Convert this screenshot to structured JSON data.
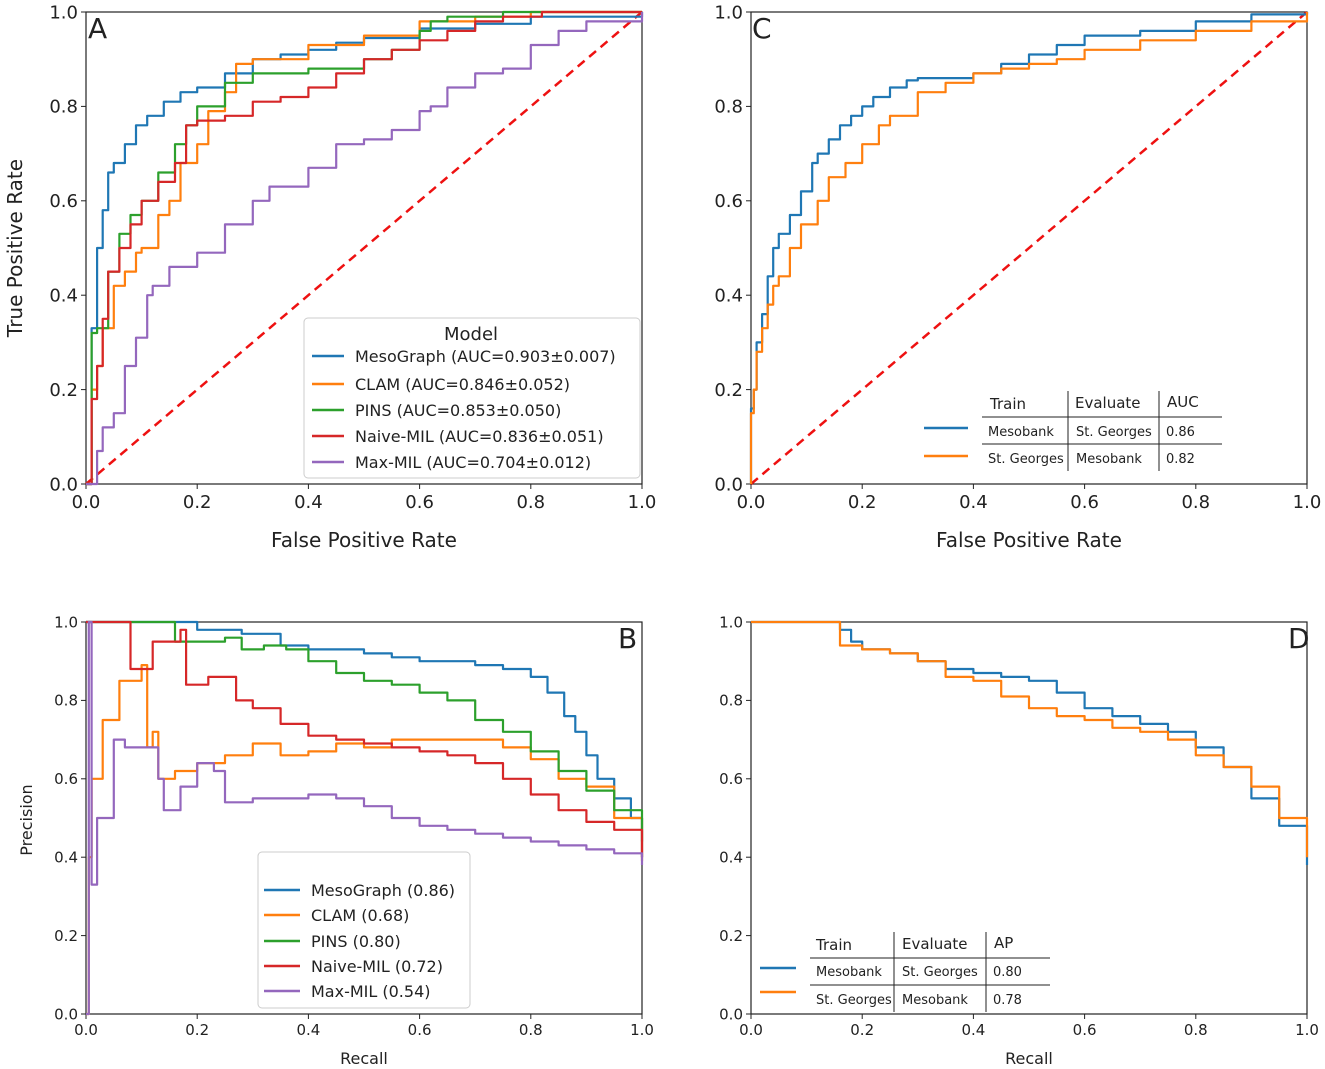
{
  "colors": {
    "MesoGraph": "#1f77b4",
    "CLAM": "#ff7f0e",
    "PINS": "#2ca02c",
    "Naive-MIL": "#d62728",
    "Max-MIL": "#9467bd",
    "diagonal": "#ee1111"
  },
  "chart_data": [
    {
      "panel_label": "A",
      "type": "line",
      "xlabel": "False Positive Rate",
      "ylabel": "True Positive Rate",
      "xlim": [
        0,
        1
      ],
      "ylim": [
        0,
        1
      ],
      "ticks": [
        "0.0",
        "0.2",
        "0.4",
        "0.6",
        "0.8",
        "1.0"
      ],
      "legend": {
        "title": "Model",
        "placement": "lower-right"
      },
      "diagonal": true,
      "series": [
        {
          "name": "MesoGraph (AUC=0.903±0.007)",
          "key": "MesoGraph",
          "x": [
            0,
            0.01,
            0.02,
            0.03,
            0.04,
            0.05,
            0.07,
            0.09,
            0.11,
            0.14,
            0.17,
            0.2,
            0.25,
            0.3,
            0.35,
            0.4,
            0.45,
            0.5,
            0.6,
            0.7,
            0.8,
            1.0
          ],
          "y": [
            0,
            0.33,
            0.5,
            0.58,
            0.66,
            0.68,
            0.72,
            0.76,
            0.78,
            0.81,
            0.83,
            0.84,
            0.87,
            0.9,
            0.91,
            0.92,
            0.935,
            0.945,
            0.965,
            0.975,
            0.99,
            1.0
          ]
        },
        {
          "name": "CLAM (AUC=0.846±0.052)",
          "key": "CLAM",
          "x": [
            0,
            0.01,
            0.02,
            0.03,
            0.05,
            0.07,
            0.09,
            0.1,
            0.13,
            0.15,
            0.17,
            0.2,
            0.22,
            0.25,
            0.27,
            0.3,
            0.4,
            0.5,
            0.6,
            0.7,
            0.8,
            0.88,
            1.0
          ],
          "y": [
            0,
            0.2,
            0.25,
            0.33,
            0.42,
            0.45,
            0.49,
            0.5,
            0.57,
            0.6,
            0.68,
            0.72,
            0.79,
            0.83,
            0.89,
            0.9,
            0.93,
            0.95,
            0.98,
            0.99,
            1.0,
            1.0,
            1.0
          ]
        },
        {
          "name": "PINS (AUC=0.853±0.050)",
          "key": "PINS",
          "x": [
            0,
            0.01,
            0.02,
            0.04,
            0.06,
            0.08,
            0.1,
            0.13,
            0.16,
            0.18,
            0.2,
            0.25,
            0.3,
            0.4,
            0.5,
            0.55,
            0.6,
            0.62,
            0.65,
            0.75,
            0.85,
            1.0
          ],
          "y": [
            0,
            0.32,
            0.33,
            0.45,
            0.53,
            0.57,
            0.6,
            0.66,
            0.72,
            0.76,
            0.8,
            0.85,
            0.87,
            0.88,
            0.9,
            0.92,
            0.96,
            0.98,
            0.99,
            1.0,
            1.0,
            1.0
          ]
        },
        {
          "name": "Naive-MIL (AUC=0.836±0.051)",
          "key": "Naive-MIL",
          "x": [
            0,
            0.01,
            0.02,
            0.03,
            0.04,
            0.06,
            0.08,
            0.1,
            0.13,
            0.16,
            0.18,
            0.2,
            0.25,
            0.3,
            0.35,
            0.4,
            0.45,
            0.5,
            0.55,
            0.6,
            0.65,
            0.7,
            0.75,
            0.82,
            0.9,
            1.0
          ],
          "y": [
            0,
            0.18,
            0.25,
            0.35,
            0.45,
            0.5,
            0.55,
            0.6,
            0.64,
            0.68,
            0.76,
            0.77,
            0.78,
            0.81,
            0.82,
            0.84,
            0.87,
            0.9,
            0.92,
            0.94,
            0.96,
            0.98,
            0.99,
            1.0,
            1.0,
            1.0
          ]
        },
        {
          "name": "Max-MIL (AUC=0.704±0.012)",
          "key": "Max-MIL",
          "x": [
            0,
            0.02,
            0.03,
            0.05,
            0.07,
            0.09,
            0.11,
            0.12,
            0.15,
            0.2,
            0.25,
            0.3,
            0.33,
            0.4,
            0.45,
            0.5,
            0.55,
            0.6,
            0.62,
            0.65,
            0.7,
            0.75,
            0.8,
            0.85,
            0.9,
            1.0
          ],
          "y": [
            0,
            0.07,
            0.12,
            0.15,
            0.25,
            0.31,
            0.4,
            0.42,
            0.46,
            0.49,
            0.55,
            0.6,
            0.63,
            0.67,
            0.72,
            0.73,
            0.75,
            0.79,
            0.8,
            0.84,
            0.87,
            0.88,
            0.93,
            0.96,
            0.98,
            1.0
          ]
        }
      ]
    },
    {
      "panel_label": "C",
      "type": "line",
      "xlabel": "False Positive Rate",
      "ylabel": "",
      "xlim": [
        0,
        1
      ],
      "ylim": [
        0,
        1
      ],
      "ticks": [
        "0.0",
        "0.2",
        "0.4",
        "0.6",
        "0.8",
        "1.0"
      ],
      "diagonal": true,
      "legend_table": {
        "headers": [
          "Train",
          "Evaluate",
          "AUC"
        ],
        "rows": [
          {
            "key": "MesoGraph",
            "cells": [
              "Mesobank",
              "St. Georges",
              "0.86"
            ]
          },
          {
            "key": "CLAM",
            "cells": [
              "St. Georges",
              "Mesobank",
              "0.82"
            ]
          }
        ]
      },
      "series": [
        {
          "key": "MesoGraph",
          "x": [
            0,
            0.0,
            0.005,
            0.01,
            0.02,
            0.03,
            0.04,
            0.05,
            0.07,
            0.09,
            0.11,
            0.12,
            0.14,
            0.16,
            0.18,
            0.2,
            0.22,
            0.25,
            0.28,
            0.3,
            0.35,
            0.4,
            0.45,
            0.5,
            0.55,
            0.6,
            0.7,
            0.8,
            0.9,
            1.0
          ],
          "y": [
            0,
            0.16,
            0.2,
            0.3,
            0.36,
            0.44,
            0.5,
            0.53,
            0.57,
            0.62,
            0.68,
            0.7,
            0.73,
            0.76,
            0.78,
            0.8,
            0.82,
            0.84,
            0.855,
            0.86,
            0.86,
            0.87,
            0.89,
            0.91,
            0.93,
            0.95,
            0.96,
            0.98,
            0.995,
            1.0
          ]
        },
        {
          "key": "CLAM",
          "x": [
            0,
            0.0,
            0.005,
            0.01,
            0.02,
            0.03,
            0.04,
            0.05,
            0.07,
            0.09,
            0.12,
            0.14,
            0.17,
            0.2,
            0.23,
            0.25,
            0.3,
            0.35,
            0.4,
            0.45,
            0.5,
            0.55,
            0.6,
            0.7,
            0.8,
            0.9,
            1.0
          ],
          "y": [
            0,
            0.15,
            0.2,
            0.28,
            0.33,
            0.38,
            0.42,
            0.44,
            0.5,
            0.55,
            0.6,
            0.65,
            0.68,
            0.72,
            0.76,
            0.78,
            0.83,
            0.85,
            0.87,
            0.88,
            0.89,
            0.9,
            0.92,
            0.94,
            0.96,
            0.98,
            1.0
          ]
        }
      ]
    },
    {
      "panel_label": "B",
      "type": "line",
      "xlabel": "Recall",
      "ylabel": "Precision",
      "xlim": [
        0,
        1
      ],
      "ylim": [
        0,
        1
      ],
      "ticks": [
        "0.0",
        "0.2",
        "0.4",
        "0.6",
        "0.8",
        "1.0"
      ],
      "legend": {
        "title": "",
        "placement": "lower-center"
      },
      "series": [
        {
          "name": "MesoGraph (0.86)",
          "key": "MesoGraph",
          "x": [
            0,
            0.01,
            0.02,
            0.15,
            0.2,
            0.28,
            0.35,
            0.4,
            0.45,
            0.5,
            0.55,
            0.6,
            0.65,
            0.7,
            0.75,
            0.8,
            0.83,
            0.86,
            0.88,
            0.9,
            0.92,
            0.95,
            0.98,
            1.0
          ],
          "y": [
            1,
            1,
            1,
            1,
            0.98,
            0.97,
            0.94,
            0.93,
            0.93,
            0.92,
            0.91,
            0.9,
            0.9,
            0.89,
            0.88,
            0.86,
            0.82,
            0.76,
            0.72,
            0.66,
            0.6,
            0.55,
            0.5,
            0.4
          ]
        },
        {
          "name": "CLAM (0.68)",
          "key": "CLAM",
          "x": [
            0,
            0.005,
            0.01,
            0.03,
            0.06,
            0.1,
            0.11,
            0.12,
            0.13,
            0.16,
            0.2,
            0.25,
            0.3,
            0.35,
            0.4,
            0.45,
            0.5,
            0.55,
            0.6,
            0.65,
            0.7,
            0.75,
            0.8,
            0.85,
            0.9,
            0.95,
            1.0
          ],
          "y": [
            0,
            0.4,
            0.6,
            0.75,
            0.85,
            0.89,
            0.68,
            0.72,
            0.6,
            0.62,
            0.64,
            0.66,
            0.69,
            0.66,
            0.67,
            0.69,
            0.68,
            0.7,
            0.7,
            0.7,
            0.7,
            0.68,
            0.65,
            0.6,
            0.58,
            0.5,
            0.39
          ]
        },
        {
          "name": "PINS (0.80)",
          "key": "PINS",
          "x": [
            0,
            0.01,
            0.05,
            0.1,
            0.15,
            0.16,
            0.2,
            0.25,
            0.28,
            0.32,
            0.36,
            0.4,
            0.45,
            0.5,
            0.55,
            0.6,
            0.65,
            0.7,
            0.75,
            0.8,
            0.85,
            0.9,
            0.95,
            1.0
          ],
          "y": [
            1,
            1,
            1,
            1,
            1,
            0.95,
            0.95,
            0.96,
            0.93,
            0.94,
            0.93,
            0.9,
            0.87,
            0.85,
            0.84,
            0.82,
            0.8,
            0.75,
            0.72,
            0.67,
            0.62,
            0.57,
            0.52,
            0.44
          ]
        },
        {
          "name": "Naive-MIL (0.72)",
          "key": "Naive-MIL",
          "x": [
            0,
            0.01,
            0.07,
            0.08,
            0.12,
            0.17,
            0.18,
            0.22,
            0.27,
            0.3,
            0.35,
            0.4,
            0.45,
            0.5,
            0.55,
            0.6,
            0.65,
            0.7,
            0.75,
            0.8,
            0.85,
            0.9,
            0.95,
            1.0
          ],
          "y": [
            1,
            1,
            1,
            0.88,
            0.95,
            0.98,
            0.84,
            0.86,
            0.8,
            0.78,
            0.74,
            0.71,
            0.7,
            0.69,
            0.68,
            0.67,
            0.66,
            0.64,
            0.6,
            0.56,
            0.52,
            0.49,
            0.47,
            0.4
          ]
        },
        {
          "name": "Max-MIL (0.54)",
          "key": "Max-MIL",
          "x": [
            0,
            0.005,
            0.01,
            0.02,
            0.05,
            0.07,
            0.1,
            0.13,
            0.14,
            0.17,
            0.2,
            0.23,
            0.25,
            0.3,
            0.35,
            0.4,
            0.45,
            0.5,
            0.55,
            0.6,
            0.65,
            0.7,
            0.75,
            0.8,
            0.85,
            0.9,
            0.95,
            1.0
          ],
          "y": [
            0,
            1,
            0.33,
            0.5,
            0.7,
            0.68,
            0.68,
            0.6,
            0.52,
            0.58,
            0.64,
            0.62,
            0.54,
            0.55,
            0.55,
            0.56,
            0.55,
            0.53,
            0.5,
            0.48,
            0.47,
            0.46,
            0.45,
            0.44,
            0.43,
            0.42,
            0.41,
            0.38
          ]
        }
      ]
    },
    {
      "panel_label": "D",
      "type": "line",
      "xlabel": "Recall",
      "ylabel": "",
      "xlim": [
        0,
        1
      ],
      "ylim": [
        0,
        1
      ],
      "ticks": [
        "0.0",
        "0.2",
        "0.4",
        "0.6",
        "0.8",
        "1.0"
      ],
      "legend_table": {
        "headers": [
          "Train",
          "Evaluate",
          "AP"
        ],
        "rows": [
          {
            "key": "MesoGraph",
            "cells": [
              "Mesobank",
              "St. Georges",
              "0.80"
            ]
          },
          {
            "key": "CLAM",
            "cells": [
              "St. Georges",
              "Mesobank",
              "0.78"
            ]
          }
        ]
      },
      "series": [
        {
          "key": "MesoGraph",
          "x": [
            0,
            0.05,
            0.1,
            0.15,
            0.16,
            0.18,
            0.2,
            0.25,
            0.3,
            0.35,
            0.4,
            0.45,
            0.5,
            0.55,
            0.6,
            0.65,
            0.7,
            0.75,
            0.8,
            0.85,
            0.9,
            0.95,
            1.0
          ],
          "y": [
            1,
            1,
            1,
            1,
            0.98,
            0.95,
            0.93,
            0.92,
            0.9,
            0.88,
            0.87,
            0.86,
            0.85,
            0.82,
            0.78,
            0.76,
            0.74,
            0.72,
            0.68,
            0.63,
            0.55,
            0.48,
            0.38
          ]
        },
        {
          "key": "CLAM",
          "x": [
            0,
            0.05,
            0.1,
            0.15,
            0.16,
            0.2,
            0.25,
            0.3,
            0.35,
            0.4,
            0.45,
            0.5,
            0.55,
            0.6,
            0.65,
            0.7,
            0.75,
            0.8,
            0.85,
            0.9,
            0.95,
            1.0
          ],
          "y": [
            1,
            1,
            1,
            1,
            0.94,
            0.93,
            0.92,
            0.9,
            0.86,
            0.85,
            0.81,
            0.78,
            0.76,
            0.75,
            0.73,
            0.72,
            0.7,
            0.66,
            0.63,
            0.58,
            0.5,
            0.4
          ]
        }
      ]
    }
  ]
}
